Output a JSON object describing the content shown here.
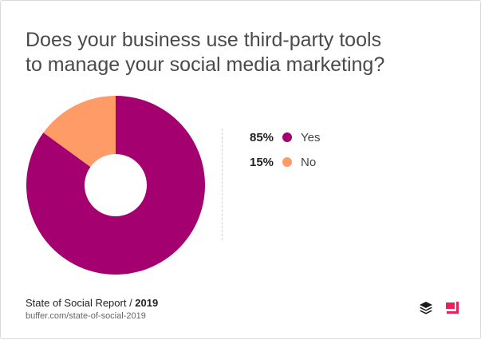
{
  "chart_data": {
    "type": "pie",
    "donut": true,
    "title_lines": [
      "Does your business use third-party tools",
      "to manage your social media marketing?"
    ],
    "slices": [
      {
        "label": "Yes",
        "value": 85,
        "display": "85%",
        "color": "#a5006f"
      },
      {
        "label": "No",
        "value": 15,
        "display": "15%",
        "color": "#ff9b66"
      }
    ],
    "legend_position": "right"
  },
  "footer": {
    "report": "State of Social Report / ",
    "year": "2019",
    "source": "buffer.com/state-of-social-2019"
  },
  "colors": {
    "accent": "#a5006f",
    "secondary": "#ff9b66",
    "brand_pink": "#e8205c"
  },
  "icons": {
    "buffer": "buffer-logo-icon",
    "brand": "brand-logo-icon"
  }
}
